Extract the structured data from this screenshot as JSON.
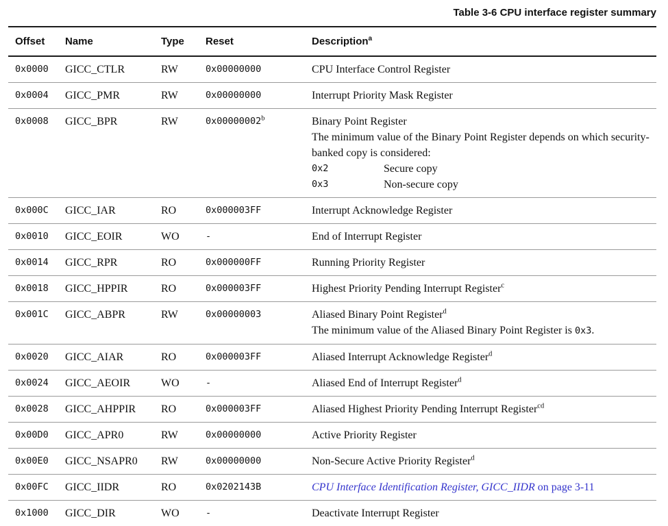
{
  "title": "Table 3-6 CPU interface register summary",
  "colors": {
    "text": "#111111",
    "link": "#3434cc",
    "rule_dark": "#1a1a1a",
    "rule_light": "#999999"
  },
  "table": {
    "headers": [
      "Offset",
      "Name",
      "Type",
      "Reset",
      "Description"
    ],
    "desc_header_sup": "a",
    "rows": [
      {
        "offset": "0x0000",
        "name": "GICC_CTLR",
        "type": "RW",
        "reset": "0x00000000",
        "desc": [
          {
            "kind": "line",
            "runs": [
              {
                "t": "CPU Interface Control Register"
              }
            ]
          }
        ]
      },
      {
        "offset": "0x0004",
        "name": "GICC_PMR",
        "type": "RW",
        "reset": "0x00000000",
        "desc": [
          {
            "kind": "line",
            "runs": [
              {
                "t": "Interrupt Priority Mask Register"
              }
            ]
          }
        ]
      },
      {
        "offset": "0x0008",
        "name": "GICC_BPR",
        "type": "RW",
        "reset": "0x00000002",
        "reset_sup": "b",
        "desc": [
          {
            "kind": "line",
            "runs": [
              {
                "t": "Binary Point Register"
              }
            ]
          },
          {
            "kind": "line",
            "runs": [
              {
                "t": "The minimum value of the Binary Point Register depends on which security-banked copy is considered:"
              }
            ]
          },
          {
            "kind": "dl",
            "term": "0x2",
            "def": "Secure copy"
          },
          {
            "kind": "dl",
            "term": "0x3",
            "def": "Non-secure copy"
          }
        ]
      },
      {
        "offset": "0x000C",
        "name": "GICC_IAR",
        "type": "RO",
        "reset": "0x000003FF",
        "desc": [
          {
            "kind": "line",
            "runs": [
              {
                "t": "Interrupt Acknowledge Register"
              }
            ]
          }
        ]
      },
      {
        "offset": "0x0010",
        "name": "GICC_EOIR",
        "type": "WO",
        "reset": "-",
        "desc": [
          {
            "kind": "line",
            "runs": [
              {
                "t": "End of Interrupt Register"
              }
            ]
          }
        ]
      },
      {
        "offset": "0x0014",
        "name": "GICC_RPR",
        "type": "RO",
        "reset": "0x000000FF",
        "desc": [
          {
            "kind": "line",
            "runs": [
              {
                "t": "Running Priority Register"
              }
            ]
          }
        ]
      },
      {
        "offset": "0x0018",
        "name": "GICC_HPPIR",
        "type": "RO",
        "reset": "0x000003FF",
        "desc": [
          {
            "kind": "line",
            "runs": [
              {
                "t": "Highest Priority Pending Interrupt Register"
              },
              {
                "t": "c",
                "s": "sup"
              }
            ]
          }
        ]
      },
      {
        "offset": "0x001C",
        "name": "GICC_ABPR",
        "type": "RW",
        "reset": "0x00000003",
        "desc": [
          {
            "kind": "line",
            "runs": [
              {
                "t": "Aliased Binary Point Register"
              },
              {
                "t": "d",
                "s": "sup"
              }
            ]
          },
          {
            "kind": "line",
            "runs": [
              {
                "t": "The minimum value of the Aliased Binary Point Register is "
              },
              {
                "t": "0x3",
                "s": "mono"
              },
              {
                "t": "."
              }
            ]
          }
        ]
      },
      {
        "offset": "0x0020",
        "name": "GICC_AIAR",
        "type": "RO",
        "reset": "0x000003FF",
        "desc": [
          {
            "kind": "line",
            "runs": [
              {
                "t": "Aliased Interrupt Acknowledge Register"
              },
              {
                "t": "d",
                "s": "sup"
              }
            ]
          }
        ]
      },
      {
        "offset": "0x0024",
        "name": "GICC_AEOIR",
        "type": "WO",
        "reset": "-",
        "desc": [
          {
            "kind": "line",
            "runs": [
              {
                "t": "Aliased End of Interrupt Register"
              },
              {
                "t": "d",
                "s": "sup"
              }
            ]
          }
        ]
      },
      {
        "offset": "0x0028",
        "name": "GICC_AHPPIR",
        "type": "RO",
        "reset": "0x000003FF",
        "desc": [
          {
            "kind": "line",
            "runs": [
              {
                "t": "Aliased Highest Priority Pending Interrupt Register"
              },
              {
                "t": "cd",
                "s": "sup"
              }
            ]
          }
        ]
      },
      {
        "offset": "0x00D0",
        "name": "GICC_APR0",
        "type": "RW",
        "reset": "0x00000000",
        "desc": [
          {
            "kind": "line",
            "runs": [
              {
                "t": "Active Priority Register"
              }
            ]
          }
        ]
      },
      {
        "offset": "0x00E0",
        "name": "GICC_NSAPR0",
        "type": "RW",
        "reset": "0x00000000",
        "desc": [
          {
            "kind": "line",
            "runs": [
              {
                "t": "Non-Secure Active Priority Register"
              },
              {
                "t": "d",
                "s": "sup"
              }
            ]
          }
        ]
      },
      {
        "offset": "0x00FC",
        "name": "GICC_IIDR",
        "type": "RO",
        "reset": "0x0202143B",
        "desc": [
          {
            "kind": "line",
            "runs": [
              {
                "t": "CPU Interface Identification Register, GICC_IIDR",
                "s": "link-italic"
              },
              {
                "t": " on page 3-11",
                "s": "link"
              }
            ]
          }
        ]
      },
      {
        "offset": "0x1000",
        "name": "GICC_DIR",
        "type": "WO",
        "reset": "-",
        "desc": [
          {
            "kind": "line",
            "runs": [
              {
                "t": "Deactivate Interrupt Register"
              }
            ]
          }
        ]
      }
    ]
  }
}
